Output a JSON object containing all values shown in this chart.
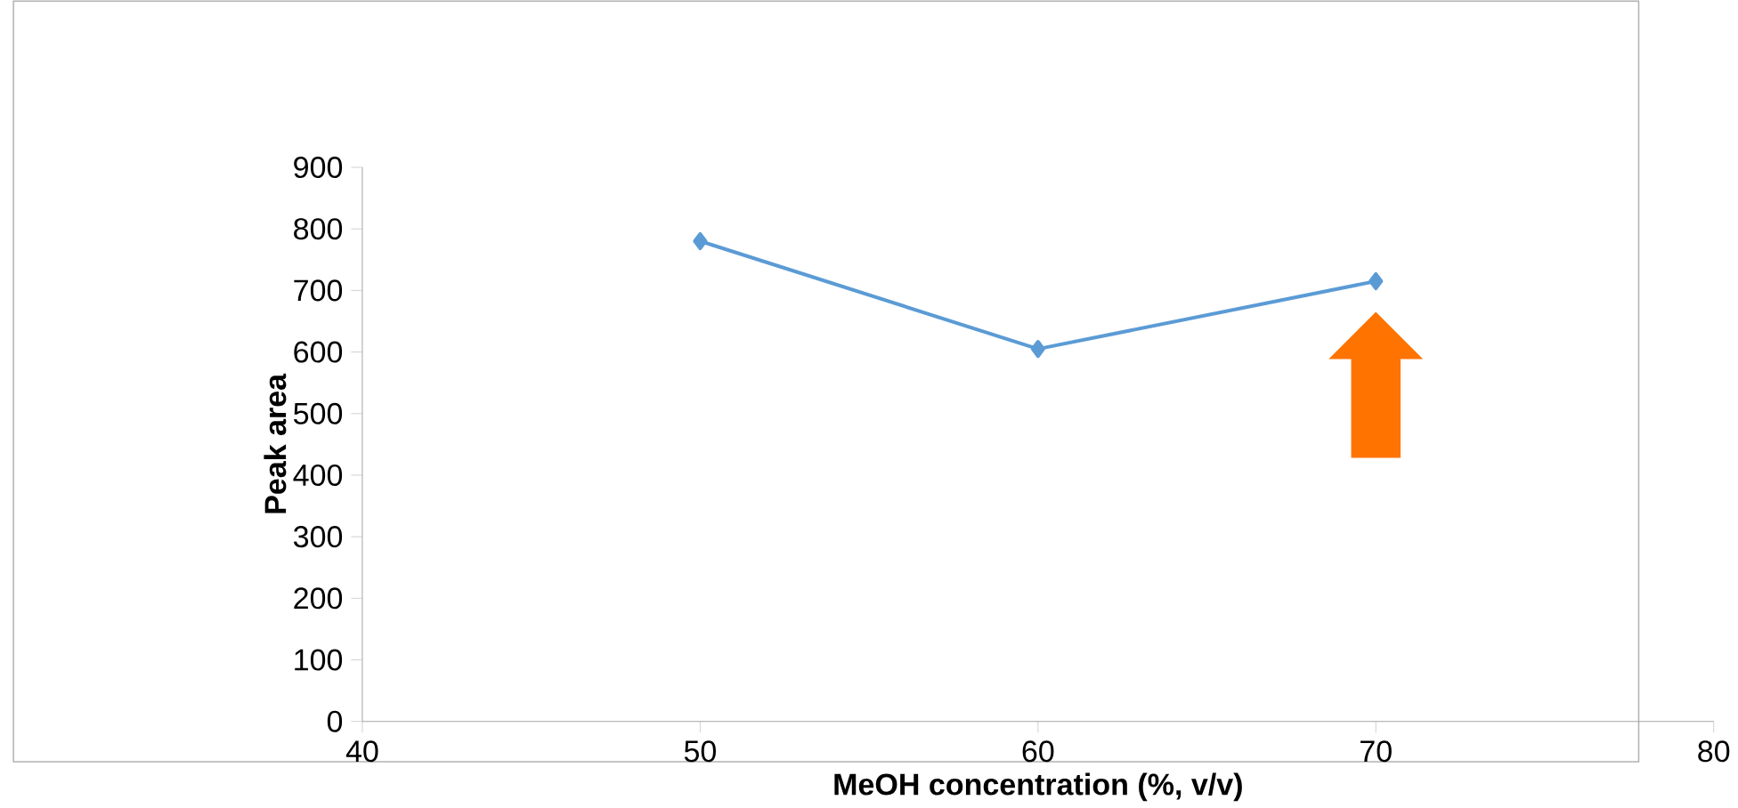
{
  "chart_data": {
    "type": "line",
    "xlabel": "MeOH concentration (%, v/v)",
    "ylabel": "Peak area",
    "x": [
      50,
      60,
      70
    ],
    "series": [
      {
        "color": "#5b9bd5",
        "values": [
          780,
          605,
          715
        ]
      }
    ],
    "xlim": [
      40,
      80
    ],
    "xticks": [
      40,
      50,
      60,
      70,
      80
    ],
    "ylim": [
      0,
      900
    ],
    "yticks": [
      0,
      100,
      200,
      300,
      400,
      500,
      600,
      700,
      800,
      900
    ],
    "grid": false,
    "marker": "diamond",
    "line_style": "solid"
  }
}
